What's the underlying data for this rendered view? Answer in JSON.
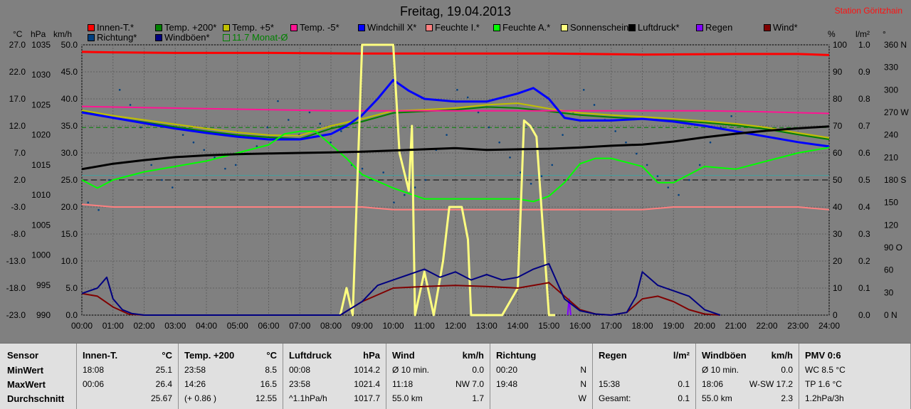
{
  "header": {
    "title": "Freitag, 19.04.2013",
    "station": "Station Göritzhain"
  },
  "units": {
    "temp": "°C",
    "pressure": "hPa",
    "wind": "km/h",
    "percent": "%",
    "rain": "l/m²",
    "deg": "°"
  },
  "legend": [
    {
      "label": "Innen-T.*",
      "color": "#ff0000"
    },
    {
      "label": "Temp. +200*",
      "color": "#008000"
    },
    {
      "label": "Temp. +5*",
      "color": "#c0c000"
    },
    {
      "label": "Temp. -5*",
      "color": "#ff1493"
    },
    {
      "label": "Windchill X*",
      "color": "#0000ff"
    },
    {
      "label": "Feuchte I.*",
      "color": "#ff8080"
    },
    {
      "label": "Feuchte A.*",
      "color": "#00ff00"
    },
    {
      "label": "Sonnenschein",
      "color": "#ffff80"
    },
    {
      "label": "Luftdruck*",
      "color": "#000000"
    },
    {
      "label": "Regen",
      "color": "#8000ff"
    },
    {
      "label": "Wind*",
      "color": "#800000"
    },
    {
      "label": "Richtung*",
      "color": "#004080"
    },
    {
      "label": "Windböen*",
      "color": "#000080"
    },
    {
      "label": "11.7 Monat-Ø",
      "color": "#008000"
    }
  ],
  "chart_data": {
    "type": "line",
    "title": "Freitag, 19.04.2013",
    "x_ticks": [
      "00:00",
      "01:00",
      "02:00",
      "03:00",
      "04:00",
      "05:00",
      "06:00",
      "07:00",
      "08:00",
      "09:00",
      "10:00",
      "11:00",
      "12:00",
      "13:00",
      "14:00",
      "15:00",
      "16:00",
      "17:00",
      "18:00",
      "19:00",
      "20:00",
      "21:00",
      "22:00",
      "23:00",
      "24:00"
    ],
    "axes": {
      "temp_c": [
        "27.0",
        "22.0",
        "17.0",
        "12.0",
        "7.0",
        "2.0",
        "-3.0",
        "-8.0",
        "-13.0",
        "-18.0",
        "-23.0"
      ],
      "pressure_hpa": [
        "1035",
        "1030",
        "1025",
        "1020",
        "1015",
        "1010",
        "1005",
        "1000",
        "995",
        "990"
      ],
      "wind_kmh": [
        "50.0",
        "45.0",
        "40.0",
        "35.0",
        "30.0",
        "25.0",
        "20.0",
        "15.0",
        "10.0",
        "5.0",
        "0.0"
      ],
      "humidity_pct": [
        "100",
        "90",
        "80",
        "70",
        "60",
        "50",
        "40",
        "30",
        "20",
        "10",
        "0"
      ],
      "rain_lm2": [
        "1.0",
        "0.9",
        "0.8",
        "0.7",
        "0.6",
        "0.5",
        "0.4",
        "0.3",
        "0.2",
        "0.1",
        "0.0"
      ],
      "direction_deg": [
        "360 N",
        "330",
        "300",
        "270 W",
        "240",
        "210",
        "180 S",
        "150",
        "120",
        "90 O",
        "60",
        "30",
        "0 N"
      ]
    },
    "ranges": {
      "temp_c": [
        -23,
        27
      ],
      "pressure_hpa": [
        990,
        1035
      ],
      "wind_kmh": [
        0,
        50
      ],
      "humidity_pct": [
        0,
        100
      ],
      "rain_lm2": [
        0,
        1
      ],
      "direction_deg": [
        0,
        360
      ]
    },
    "grid": true,
    "reference_lines": {
      "month_avg_temp_c": 11.7,
      "frost_line_temp_c": 2.0
    },
    "series": [
      {
        "name": "Innen-T.*",
        "axis": "temp_c",
        "color": "#ff0000",
        "x": [
          0,
          1,
          3,
          6,
          9,
          12,
          15,
          18,
          21,
          23,
          24
        ],
        "values": [
          25.7,
          25.6,
          25.5,
          25.5,
          25.4,
          25.4,
          25.4,
          25.2,
          25.3,
          25.3,
          25.1
        ]
      },
      {
        "name": "Temp. +200*",
        "axis": "temp_c",
        "color": "#008000",
        "x": [
          0,
          1,
          2,
          3,
          4,
          5,
          6,
          7,
          8,
          9,
          10,
          11,
          12,
          13,
          14,
          15,
          16,
          17,
          18,
          19,
          20,
          21,
          22,
          23,
          24
        ],
        "values": [
          14.7,
          13.5,
          12.7,
          11.8,
          11.0,
          10.3,
          9.9,
          9.6,
          11.5,
          12.8,
          14.4,
          14.7,
          15.0,
          15.5,
          15.3,
          14.7,
          14.0,
          13.6,
          13.3,
          13.0,
          12.6,
          12.1,
          11.4,
          10.4,
          9.5
        ]
      },
      {
        "name": "Temp. +5*",
        "axis": "temp_c",
        "color": "#c0c000",
        "x": [
          0,
          1,
          2,
          3,
          4,
          5,
          6,
          7,
          8,
          9,
          10,
          11,
          12,
          13,
          14,
          15,
          16,
          17,
          18,
          19,
          20,
          21,
          22,
          23,
          24
        ],
        "values": [
          14.9,
          13.9,
          13.1,
          12.3,
          11.5,
          10.8,
          10.3,
          10.2,
          12.0,
          13.3,
          14.8,
          15.0,
          15.3,
          15.9,
          16.2,
          15.2,
          14.4,
          14.0,
          13.7,
          13.3,
          12.9,
          12.4,
          11.7,
          10.7,
          9.8
        ]
      },
      {
        "name": "Temp. -5*",
        "axis": "temp_c",
        "color": "#ff1493",
        "x": [
          0,
          2,
          4,
          6,
          8,
          10,
          12,
          14,
          16,
          18,
          20,
          22,
          24
        ],
        "values": [
          15.6,
          15.4,
          15.2,
          15.0,
          14.8,
          14.8,
          14.8,
          14.8,
          14.8,
          14.8,
          14.8,
          14.6,
          14.3
        ]
      },
      {
        "name": "Windchill X*",
        "axis": "temp_c",
        "color": "#0000ff",
        "x": [
          0,
          1,
          2,
          3,
          4,
          5,
          6,
          7,
          8,
          8.5,
          9,
          9.5,
          10,
          10.5,
          11,
          12,
          13,
          14,
          14.5,
          15,
          15.5,
          16,
          17,
          18,
          19,
          20,
          21,
          22,
          23,
          24
        ],
        "values": [
          14.5,
          13.5,
          12.5,
          11.5,
          10.7,
          10.0,
          9.5,
          9.5,
          10.5,
          12.0,
          14.0,
          17.0,
          20.5,
          18.5,
          17.0,
          16.5,
          16.5,
          18.0,
          19.0,
          17.0,
          13.5,
          13.0,
          13.0,
          13.3,
          12.8,
          12.0,
          11.0,
          10.0,
          9.0,
          8.2
        ]
      },
      {
        "name": "Feuchte I.*",
        "axis": "humidity_pct",
        "color": "#ff8080",
        "x": [
          0,
          1,
          2,
          3,
          4,
          5,
          6,
          7,
          8,
          9,
          10,
          11,
          12,
          13,
          14,
          15,
          16,
          17,
          18,
          19,
          20,
          21,
          22,
          23,
          24
        ],
        "values": [
          41,
          40,
          40,
          40,
          40,
          40,
          40,
          40,
          40,
          40,
          39,
          39,
          39,
          39,
          39,
          39,
          39,
          39,
          39,
          40,
          40,
          40,
          40,
          40,
          39
        ]
      },
      {
        "name": "Feuchte A.*",
        "axis": "humidity_pct",
        "color": "#00ff00",
        "x": [
          0,
          0.5,
          1,
          2,
          3,
          4,
          5,
          6,
          6.5,
          7,
          7.5,
          8,
          8.5,
          9,
          10,
          11,
          12,
          13,
          14,
          14.5,
          15,
          15.5,
          16,
          16.5,
          17,
          18,
          18.5,
          19,
          20,
          21,
          22,
          23,
          24
        ],
        "values": [
          50,
          47,
          50,
          53,
          55,
          57,
          60,
          63,
          67,
          68,
          68,
          63,
          58,
          52,
          47,
          43,
          43,
          43,
          43,
          42,
          44,
          49,
          56,
          58,
          58,
          55,
          49,
          49,
          55,
          54,
          57,
          60,
          62
        ]
      },
      {
        "name": "Sonnenschein",
        "axis": "wind_kmh",
        "color": "#ffff80",
        "x": [
          8.3,
          8.5,
          8.7,
          9.0,
          9.1,
          9.3,
          10.0,
          10.2,
          10.5,
          10.6,
          10.7,
          11.0,
          11.3,
          11.6,
          11.8,
          12.1,
          12.2,
          12.4,
          12.5,
          13.0,
          13.5,
          14.0,
          14.2,
          14.4,
          14.6,
          15.0,
          15.2
        ],
        "values": [
          0,
          5,
          0,
          50,
          50,
          50,
          50,
          30,
          23,
          35,
          0,
          8,
          0,
          10,
          20,
          20,
          20,
          14,
          0,
          0,
          0,
          5,
          36,
          35,
          33,
          0,
          0
        ]
      },
      {
        "name": "Luftdruck*",
        "axis": "pressure_hpa",
        "color": "#000000",
        "x": [
          0,
          1,
          2,
          3,
          4,
          5,
          6,
          7,
          8,
          9,
          10,
          11,
          12,
          13,
          14,
          15,
          16,
          17,
          18,
          19,
          20,
          21,
          22,
          23,
          24
        ],
        "values": [
          1014.3,
          1015.2,
          1015.8,
          1016.3,
          1016.6,
          1016.8,
          1016.9,
          1017.0,
          1017.1,
          1017.2,
          1017.4,
          1017.6,
          1017.8,
          1017.5,
          1017.6,
          1017.7,
          1017.9,
          1018.2,
          1018.4,
          1018.9,
          1019.6,
          1020.2,
          1020.7,
          1021.1,
          1021.4
        ]
      },
      {
        "name": "Regen",
        "axis": "rain_lm2",
        "color": "#8000ff",
        "x": [
          15.6,
          15.65,
          15.7
        ],
        "values": [
          0,
          0.06,
          0
        ]
      },
      {
        "name": "Wind*",
        "axis": "wind_kmh",
        "color": "#800000",
        "x": [
          0,
          0.5,
          1,
          1.5,
          2,
          8.3,
          9,
          10,
          11,
          12,
          13,
          14,
          15,
          15.5,
          16,
          16.5,
          17,
          17.5,
          18,
          18.5,
          19,
          19.5,
          20,
          20.5
        ],
        "values": [
          4.0,
          3.5,
          1.5,
          0.2,
          0,
          0,
          2.5,
          5.0,
          5.3,
          5.5,
          5.3,
          5.0,
          6.0,
          3.5,
          1.0,
          0.2,
          0,
          0.5,
          3.0,
          3.5,
          2.5,
          1.0,
          0.2,
          0
        ]
      },
      {
        "name": "Windböen*",
        "axis": "wind_kmh",
        "color": "#000080",
        "x": [
          0,
          0.5,
          0.8,
          1,
          1.3,
          1.6,
          2,
          8.3,
          9,
          9.5,
          10,
          10.5,
          11,
          11.5,
          12,
          12.5,
          13,
          13.5,
          14,
          14.5,
          15,
          15.5,
          16,
          16.5,
          17,
          17.5,
          17.8,
          18,
          18.5,
          19,
          19.5,
          20,
          20.5
        ],
        "values": [
          4.0,
          5.0,
          7.0,
          3.0,
          1.0,
          0.3,
          0,
          0,
          2.5,
          5.5,
          6.5,
          7.5,
          8.5,
          7.0,
          8.0,
          6.5,
          7.5,
          6.5,
          7.0,
          8.5,
          9.5,
          3.0,
          0.8,
          0.2,
          0,
          0.5,
          3.5,
          8.0,
          5.5,
          4.5,
          3.5,
          1.0,
          0
        ]
      }
    ],
    "wind_direction_samples_deg": [
      150,
      140,
      180,
      300,
      280,
      250,
      200,
      180,
      170,
      240,
      230,
      220,
      210,
      195,
      200,
      215,
      225,
      250,
      285,
      260,
      240,
      270,
      255,
      230,
      245,
      200,
      195,
      180,
      190,
      150,
      160,
      170,
      180,
      220,
      240,
      300,
      290,
      270,
      250,
      230,
      210,
      190,
      175,
      185,
      200,
      240,
      270,
      300,
      280,
      260,
      245,
      230,
      215,
      200,
      185,
      170,
      160,
      180,
      200,
      230,
      250,
      265
    ]
  },
  "table": {
    "row_labels": [
      "Sensor",
      "MinWert",
      "MaxWert",
      "Durchschnitt"
    ],
    "columns": [
      {
        "name": "Innen-T.",
        "unit": "°C",
        "rows": [
          [
            "18:08",
            "",
            "25.1"
          ],
          [
            "00:06",
            "",
            "26.4"
          ],
          [
            "",
            "",
            "25.67"
          ]
        ]
      },
      {
        "name": "Temp. +200",
        "unit": "°C",
        "rows": [
          [
            "23:58",
            "",
            "8.5"
          ],
          [
            "14:26",
            "",
            "16.5"
          ],
          [
            "(+ 0.86 )",
            "",
            "12.55"
          ]
        ]
      },
      {
        "name": "Luftdruck",
        "unit": "hPa",
        "rows": [
          [
            "00:08",
            "",
            "1014.2"
          ],
          [
            "23:58",
            "",
            "1021.4"
          ],
          [
            "^1.1hPa/h",
            "",
            "1017.7"
          ]
        ]
      },
      {
        "name": "Wind",
        "unit": "km/h",
        "rows": [
          [
            "Ø 10 min.",
            "",
            "0.0"
          ],
          [
            "11:18",
            "NW",
            "7.0"
          ],
          [
            "55.0 km",
            "",
            "1.7"
          ]
        ]
      },
      {
        "name": "Richtung",
        "unit": "",
        "rows": [
          [
            "00:20",
            "",
            "N"
          ],
          [
            "19:48",
            "",
            "N"
          ],
          [
            "",
            "",
            "W"
          ]
        ]
      },
      {
        "name": "Regen",
        "unit": "l/m²",
        "rows": [
          [
            "",
            "",
            ""
          ],
          [
            "15:38",
            "",
            "0.1"
          ],
          [
            "Gesamt:",
            "",
            "0.1"
          ]
        ]
      },
      {
        "name": "Windböen",
        "unit": "km/h",
        "rows": [
          [
            "Ø 10 min.",
            "",
            "0.0"
          ],
          [
            "18:06",
            "W-SW",
            "17.2"
          ],
          [
            "55.0 km",
            "",
            "2.3"
          ]
        ]
      },
      {
        "name": "PMV 0:6",
        "unit": "",
        "rows": [
          [
            "WC 8.5 °C",
            "",
            ""
          ],
          [
            "TP 1.6 °C",
            "",
            ""
          ],
          [
            "1.2hPa/3h",
            "",
            ""
          ]
        ]
      }
    ]
  }
}
